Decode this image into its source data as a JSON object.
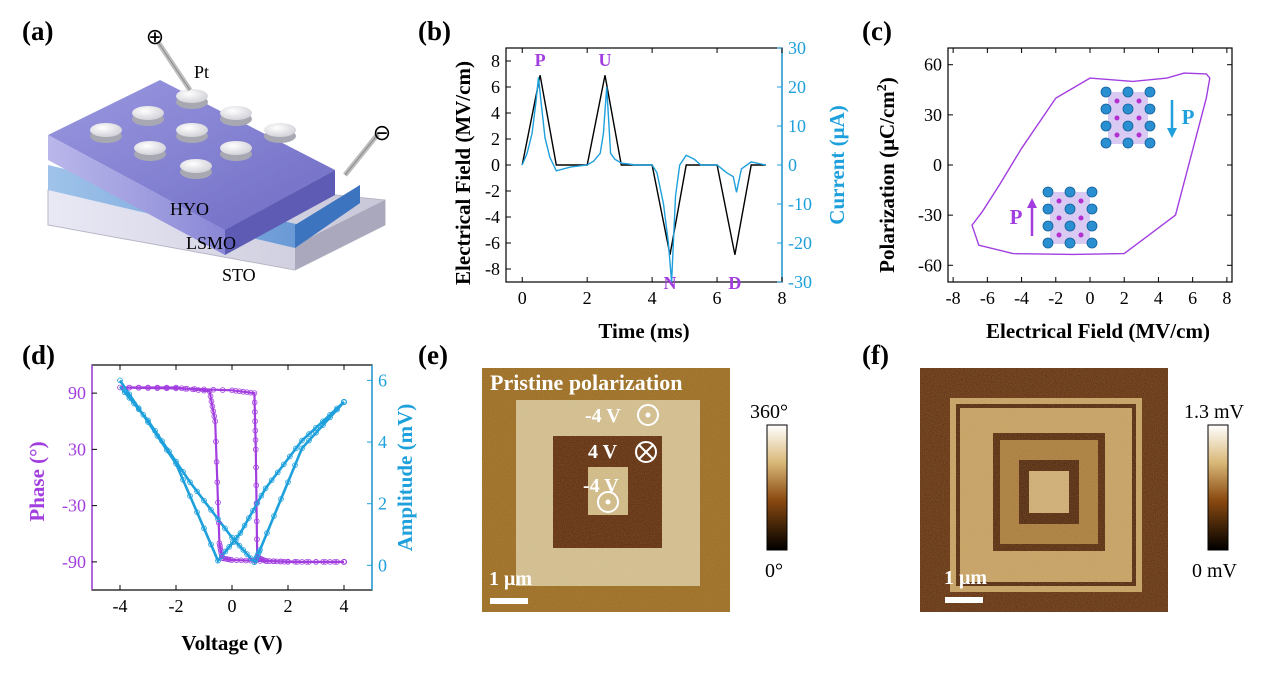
{
  "colors": {
    "purple": "#a23ee0",
    "blue": "#1ea0dc",
    "black": "#000000"
  },
  "panels": {
    "a": {
      "label": "(a)",
      "layers": [
        "Pt",
        "HYO",
        "LSMO",
        "STO"
      ],
      "plus_symbol": "⊕",
      "minus_symbol": "⊖"
    },
    "b": {
      "label": "(b)",
      "pulse_labels": [
        "P",
        "U",
        "N",
        "D"
      ]
    },
    "c": {
      "label": "(c)",
      "arrow_label_up": "P",
      "arrow_label_down": "P"
    },
    "d": {
      "label": "(d)"
    },
    "e": {
      "label": "(e)",
      "title": "Pristine polarization",
      "annot_outer": "-4 V",
      "annot_middle": "4 V",
      "annot_inner": "-4 V",
      "scale_bar": "1 μm",
      "colorbar_max": "360°",
      "colorbar_min": "0°"
    },
    "f": {
      "label": "(f)",
      "scale_bar": "1 μm",
      "colorbar_max": "1.3 mV",
      "colorbar_min": "0 mV"
    }
  },
  "chart_data": [
    {
      "id": "b",
      "type": "line",
      "xlabel": "Time (ms)",
      "ylabel": "Electrical Field (MV/cm)",
      "y2label": "Current (μA)",
      "xlim": [
        -0.5,
        8
      ],
      "ylim": [
        -9,
        9
      ],
      "y2lim": [
        -30,
        30
      ],
      "xticks": [
        0,
        2,
        4,
        6,
        8
      ],
      "yticks": [
        -8,
        -6,
        -4,
        -2,
        0,
        2,
        4,
        6,
        8
      ],
      "y2ticks": [
        -30,
        -20,
        -10,
        0,
        10,
        20,
        30
      ],
      "series": [
        {
          "name": "Electrical Field",
          "axis": "left",
          "color": "#000000",
          "x": [
            0,
            0.55,
            1.05,
            2.0,
            2.55,
            3.05,
            4.0,
            4.55,
            5.05,
            6.0,
            6.55,
            7.05,
            7.5
          ],
          "y": [
            0,
            6.9,
            0,
            0,
            6.9,
            0,
            0,
            -6.9,
            0,
            0,
            -6.9,
            0,
            0
          ]
        },
        {
          "name": "Current",
          "axis": "right",
          "color": "#1ea0dc",
          "x": [
            0,
            0.15,
            0.3,
            0.42,
            0.5,
            0.58,
            0.7,
            0.85,
            1.05,
            1.5,
            2.0,
            2.2,
            2.4,
            2.5,
            2.6,
            2.72,
            2.85,
            3.05,
            3.5,
            4.0,
            4.15,
            4.35,
            4.5,
            4.6,
            4.72,
            4.85,
            5.05,
            5.3,
            5.5,
            6.0,
            6.3,
            6.5,
            6.6,
            6.75,
            7.05,
            7.5
          ],
          "y": [
            0,
            3,
            8,
            16,
            22.5,
            16,
            7,
            2,
            -1.5,
            -0.5,
            0,
            1,
            3,
            8,
            20,
            3,
            1.5,
            0.5,
            0,
            0,
            -2,
            -10,
            -20,
            -30,
            -8,
            0,
            2.5,
            1.5,
            0,
            0,
            -2,
            -3,
            -7,
            -1,
            0.8,
            0
          ]
        }
      ]
    },
    {
      "id": "c",
      "type": "line",
      "xlabel": "Electrical Field (MV/cm)",
      "ylabel": "Polarization (μC/cm2)",
      "xlim": [
        -8.3,
        8.3
      ],
      "ylim": [
        -70,
        70
      ],
      "xticks": [
        -8,
        -6,
        -4,
        -2,
        0,
        2,
        4,
        6,
        8
      ],
      "yticks": [
        -60,
        -30,
        0,
        30,
        60
      ],
      "series": [
        {
          "name": "P-E loop",
          "color": "#a23ee0",
          "x": [
            -6.9,
            -6.5,
            -4.5,
            -1,
            2,
            5,
            6.8,
            7.0,
            6.8,
            5.5,
            4.5,
            2.5,
            0,
            -2,
            -4,
            -5.3,
            -6.3,
            -6.9
          ],
          "y": [
            -36,
            -48,
            -53,
            -53.5,
            -53,
            -30,
            40,
            52,
            54.5,
            55,
            52,
            50,
            52,
            40,
            10,
            -12,
            -28,
            -36
          ]
        }
      ]
    },
    {
      "id": "d",
      "type": "line",
      "xlabel": "Voltage (V)",
      "ylabel": "Phase (°)",
      "y2label": "Amplitude (mV)",
      "xlim": [
        -5,
        5
      ],
      "ylim": [
        -120,
        120
      ],
      "y2lim": [
        -0.8,
        6.5
      ],
      "xticks": [
        -4,
        -2,
        0,
        2,
        4
      ],
      "yticks": [
        -90,
        -30,
        30,
        90
      ],
      "y2ticks": [
        0,
        2,
        4,
        6
      ],
      "series": [
        {
          "name": "Phase",
          "axis": "left",
          "color": "#a23ee0",
          "x": [
            -4,
            -2,
            -0.8,
            -0.6,
            -0.45,
            -0.35,
            0,
            1,
            2.5,
            4,
            4,
            2,
            1.2,
            0.9,
            0.85,
            0.8,
            0,
            -2,
            -4
          ],
          "y": [
            96,
            96,
            92,
            60,
            -70,
            -86,
            -88,
            -89,
            -90,
            -90,
            -90,
            -90,
            -89,
            -85,
            30,
            90,
            93,
            95,
            96
          ]
        },
        {
          "name": "Amplitude",
          "axis": "right",
          "color": "#1ea0dc",
          "x": [
            -4,
            -2,
            -0.5,
            0.3,
            1.2,
            2.5,
            4,
            4,
            2.5,
            1,
            0.8,
            0,
            -1.5,
            -3,
            -4
          ],
          "y": [
            6.0,
            3.3,
            0.15,
            1.05,
            2.5,
            4.05,
            5.3,
            5.3,
            3.8,
            0.5,
            0.1,
            0.9,
            2.7,
            4.7,
            5.8
          ]
        }
      ]
    }
  ]
}
